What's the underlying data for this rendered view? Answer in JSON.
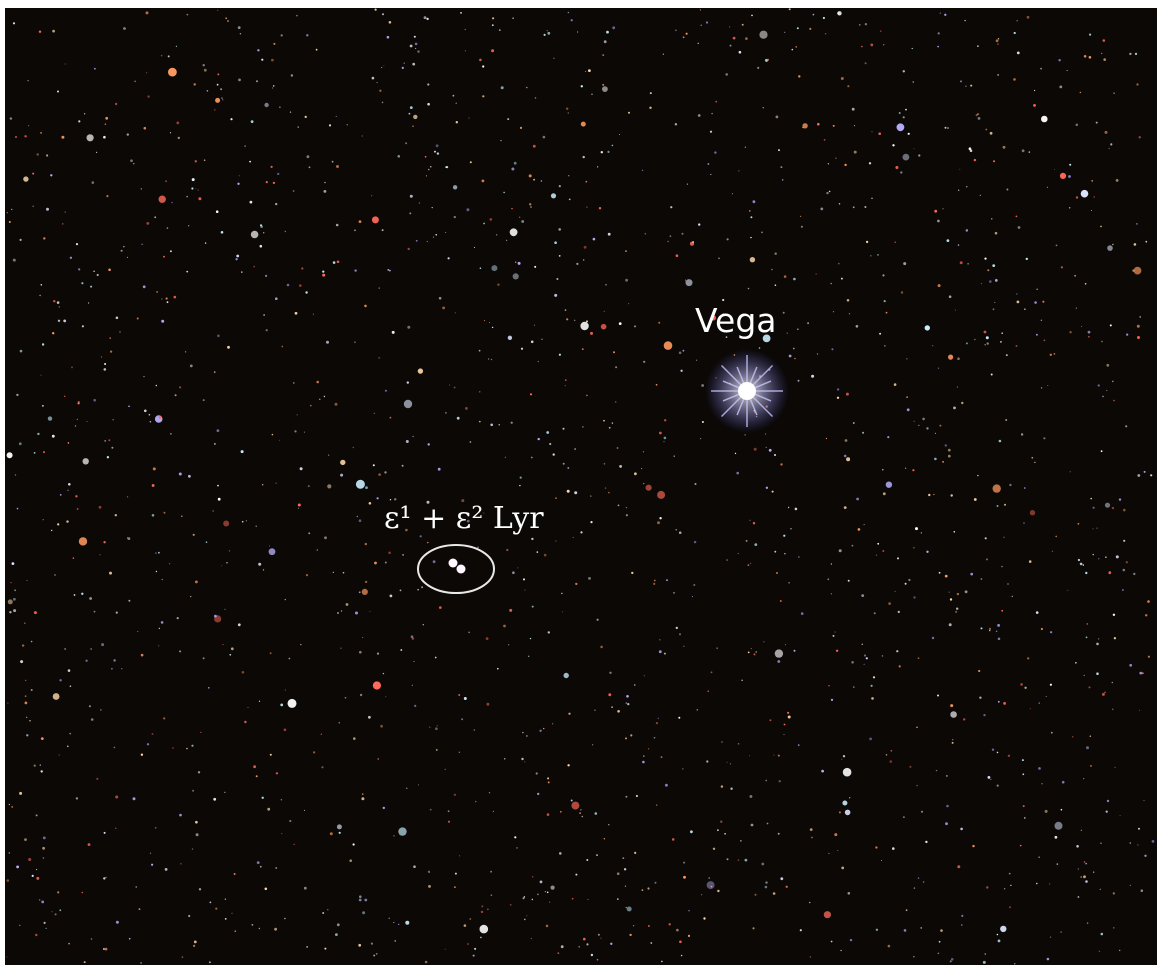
{
  "labels": {
    "vega": "Vega",
    "epsilon": "ε¹ + ε² Lyr"
  }
}
